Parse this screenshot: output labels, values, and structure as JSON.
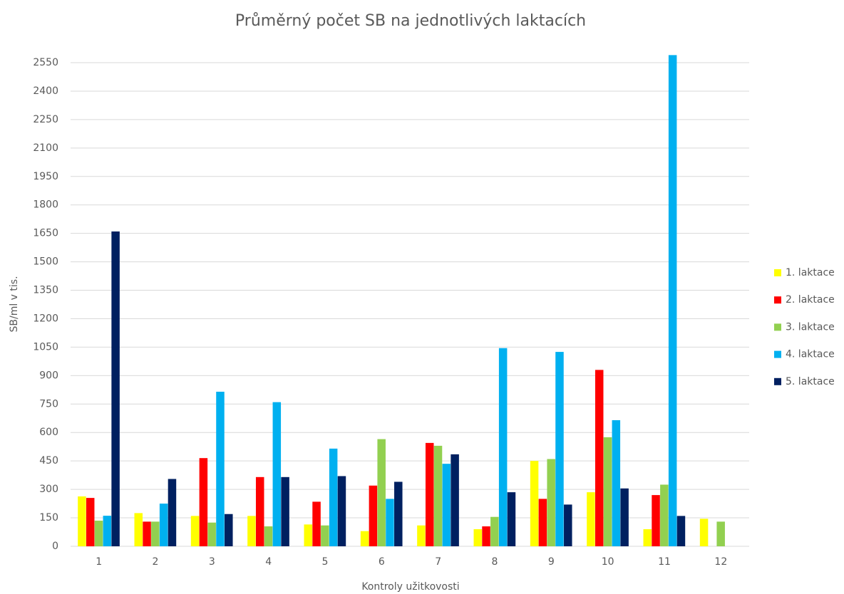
{
  "chart_data": {
    "type": "bar",
    "title": "Průměrný počet SB na jednotlivých laktacích",
    "x_label": "Kontroly užitkovosti",
    "y_label": "SB/ml v tis.",
    "categories": [
      "1",
      "2",
      "3",
      "4",
      "5",
      "6",
      "7",
      "8",
      "9",
      "10",
      "11",
      "12"
    ],
    "series": [
      {
        "name": "1. laktace",
        "color": "#ffff00",
        "values": [
          263,
          175,
          160,
          160,
          115,
          80,
          110,
          90,
          450,
          285,
          90,
          145
        ]
      },
      {
        "name": "2. laktace",
        "color": "#ff0000",
        "values": [
          255,
          130,
          465,
          365,
          235,
          320,
          545,
          105,
          250,
          930,
          270,
          null
        ]
      },
      {
        "name": "3. laktace",
        "color": "#92d050",
        "values": [
          135,
          130,
          125,
          105,
          110,
          565,
          530,
          155,
          460,
          575,
          325,
          130
        ]
      },
      {
        "name": "4. laktace",
        "color": "#00b0f0",
        "values": [
          161,
          225,
          815,
          760,
          515,
          250,
          435,
          1045,
          1025,
          665,
          2590,
          null
        ]
      },
      {
        "name": "5. laktace",
        "color": "#002060",
        "values": [
          1660,
          355,
          170,
          365,
          370,
          340,
          485,
          285,
          220,
          305,
          160,
          null
        ]
      }
    ],
    "ylim": [
      0,
      2600
    ],
    "yticks": [
      0,
      150,
      300,
      450,
      600,
      750,
      900,
      1050,
      1200,
      1350,
      1500,
      1650,
      1800,
      1950,
      2100,
      2250,
      2400,
      2550
    ],
    "grid": true,
    "legend": "right"
  }
}
